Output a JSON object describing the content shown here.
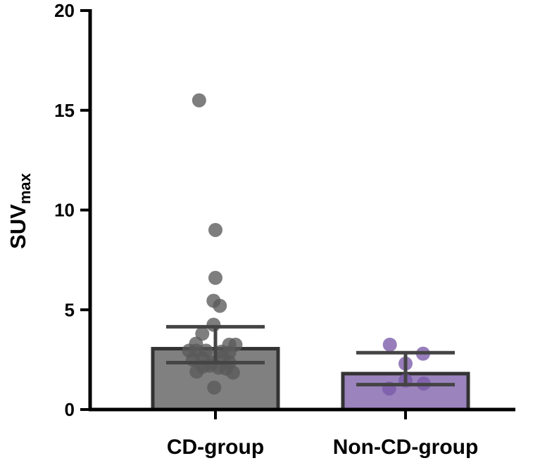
{
  "chart_data": {
    "type": "bar",
    "title": "",
    "xlabel": "",
    "ylabel": {
      "main": "SUV",
      "subscript": "max"
    },
    "ylim": [
      0,
      20
    ],
    "yticks": [
      0,
      5,
      10,
      15,
      20
    ],
    "categories": [
      "CD-group",
      "Non-CD-group"
    ],
    "bars": [
      {
        "name": "CD-group",
        "mean": 3.05,
        "err_low": 2.35,
        "err_high": 4.15,
        "fill": "#808080",
        "point_color": "#5a5a5a",
        "points": [
          {
            "x": -0.26,
            "y": 15.5
          },
          {
            "x": 0.0,
            "y": 9.0
          },
          {
            "x": 0.0,
            "y": 6.6
          },
          {
            "x": -0.03,
            "y": 5.45
          },
          {
            "x": 0.07,
            "y": 5.2
          },
          {
            "x": -0.03,
            "y": 4.25
          },
          {
            "x": -0.21,
            "y": 3.8
          },
          {
            "x": -0.31,
            "y": 3.3
          },
          {
            "x": 0.22,
            "y": 3.25
          },
          {
            "x": 0.32,
            "y": 3.25
          },
          {
            "x": -0.42,
            "y": 2.95
          },
          {
            "x": -0.31,
            "y": 2.95
          },
          {
            "x": -0.15,
            "y": 2.95
          },
          {
            "x": 0.1,
            "y": 2.9
          },
          {
            "x": 0.22,
            "y": 2.85
          },
          {
            "x": -0.2,
            "y": 2.55
          },
          {
            "x": -0.36,
            "y": 2.5
          },
          {
            "x": 0.11,
            "y": 2.6
          },
          {
            "x": 0.22,
            "y": 2.35
          },
          {
            "x": -0.05,
            "y": 2.35
          },
          {
            "x": -0.2,
            "y": 2.15
          },
          {
            "x": -0.09,
            "y": 2.2
          },
          {
            "x": 0.05,
            "y": 2.1
          },
          {
            "x": 0.17,
            "y": 2.05
          },
          {
            "x": -0.3,
            "y": 1.9
          },
          {
            "x": 0.28,
            "y": 1.85
          },
          {
            "x": -0.02,
            "y": 1.1
          }
        ]
      },
      {
        "name": "Non-CD-group",
        "mean": 1.8,
        "err_low": 1.25,
        "err_high": 2.85,
        "fill": "#9b83be",
        "point_color": "#7a5aa8",
        "points": [
          {
            "x": -0.25,
            "y": 3.25
          },
          {
            "x": 0.28,
            "y": 2.8
          },
          {
            "x": 0.0,
            "y": 2.3
          },
          {
            "x": -0.26,
            "y": 1.05
          },
          {
            "x": 0.0,
            "y": 1.45
          },
          {
            "x": 0.29,
            "y": 1.3
          }
        ]
      }
    ]
  }
}
